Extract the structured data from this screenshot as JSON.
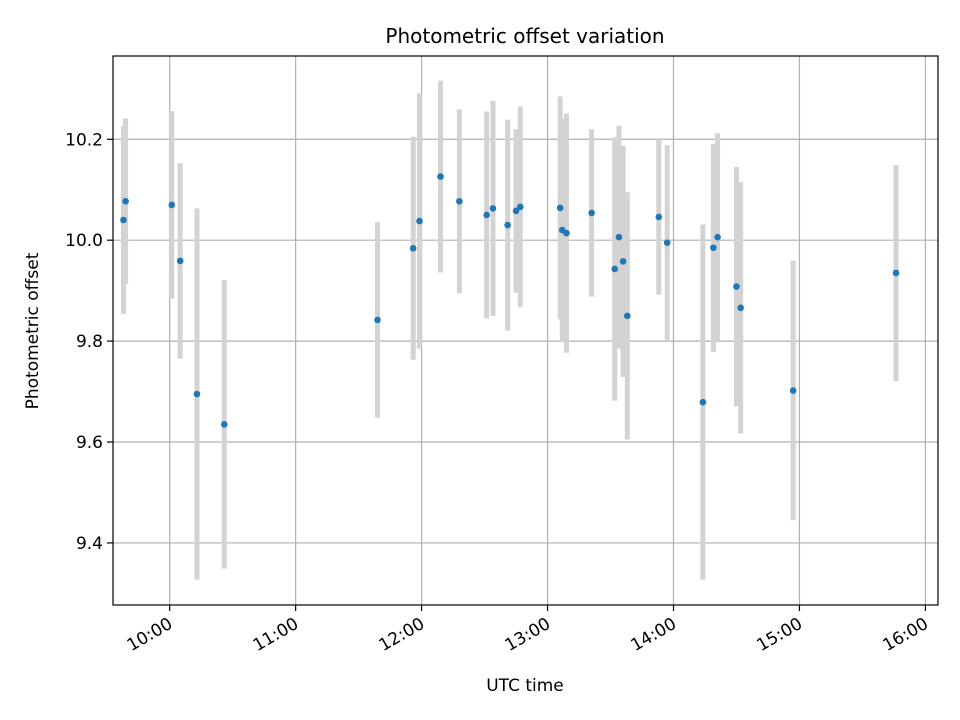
{
  "chart_data": {
    "type": "scatter",
    "title": "Photometric offset variation",
    "xlabel": "UTC time",
    "ylabel": "Photometric offset",
    "x_tick_labels": [
      "10:00",
      "11:00",
      "12:00",
      "13:00",
      "14:00",
      "15:00",
      "16:00"
    ],
    "y_tick_labels": [
      "9.4",
      "9.6",
      "9.8",
      "10.0",
      "10.2"
    ],
    "y_ticks": [
      9.4,
      9.6,
      9.8,
      10.0,
      10.2
    ],
    "xlim": [
      "09:33",
      "16:06"
    ],
    "ylim": [
      9.277,
      10.365
    ],
    "grid": true,
    "colors": {
      "point": "#1f77b4",
      "errorbar": "#d3d3d3",
      "grid": "#b0b0b0"
    },
    "points": [
      {
        "x": "09:38",
        "y": 10.04,
        "yerr": 0.186
      },
      {
        "x": "09:39",
        "y": 10.077,
        "yerr": 0.164
      },
      {
        "x": "10:01",
        "y": 10.07,
        "yerr": 0.186
      },
      {
        "x": "10:05",
        "y": 9.959,
        "yerr": 0.194
      },
      {
        "x": "10:13",
        "y": 9.695,
        "yerr": 0.368
      },
      {
        "x": "10:26",
        "y": 9.635,
        "yerr": 0.286
      },
      {
        "x": "11:39",
        "y": 9.842,
        "yerr": 0.194
      },
      {
        "x": "11:56",
        "y": 9.984,
        "yerr": 0.221
      },
      {
        "x": "11:59",
        "y": 10.038,
        "yerr": 0.253
      },
      {
        "x": "12:09",
        "y": 10.126,
        "yerr": 0.19
      },
      {
        "x": "12:18",
        "y": 10.077,
        "yerr": 0.182
      },
      {
        "x": "12:31",
        "y": 10.05,
        "yerr": 0.205
      },
      {
        "x": "12:34",
        "y": 10.063,
        "yerr": 0.213
      },
      {
        "x": "12:41",
        "y": 10.03,
        "yerr": 0.209
      },
      {
        "x": "12:45",
        "y": 10.058,
        "yerr": 0.162
      },
      {
        "x": "12:47",
        "y": 10.066,
        "yerr": 0.199
      },
      {
        "x": "13:06",
        "y": 10.064,
        "yerr": 0.221
      },
      {
        "x": "13:07",
        "y": 10.02,
        "yerr": 0.221
      },
      {
        "x": "13:09",
        "y": 10.014,
        "yerr": 0.237
      },
      {
        "x": "13:21",
        "y": 10.054,
        "yerr": 0.166
      },
      {
        "x": "13:32",
        "y": 9.943,
        "yerr": 0.261
      },
      {
        "x": "13:34",
        "y": 10.006,
        "yerr": 0.221
      },
      {
        "x": "13:36",
        "y": 9.958,
        "yerr": 0.229
      },
      {
        "x": "13:38",
        "y": 9.85,
        "yerr": 0.245
      },
      {
        "x": "13:53",
        "y": 10.046,
        "yerr": 0.154
      },
      {
        "x": "13:57",
        "y": 9.995,
        "yerr": 0.193
      },
      {
        "x": "14:14",
        "y": 9.679,
        "yerr": 0.352
      },
      {
        "x": "14:19",
        "y": 9.985,
        "yerr": 0.206
      },
      {
        "x": "14:21",
        "y": 10.006,
        "yerr": 0.206
      },
      {
        "x": "14:30",
        "y": 9.908,
        "yerr": 0.237
      },
      {
        "x": "14:32",
        "y": 9.866,
        "yerr": 0.249
      },
      {
        "x": "14:57",
        "y": 9.702,
        "yerr": 0.257
      },
      {
        "x": "15:46",
        "y": 9.935,
        "yerr": 0.214
      }
    ]
  }
}
